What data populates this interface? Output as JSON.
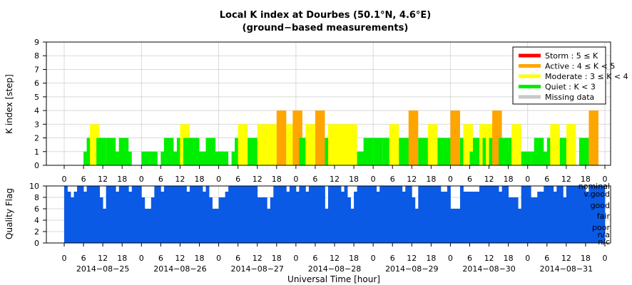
{
  "figure": {
    "title": "Local K index at Dourbes (50.1°N, 4.6°E)",
    "subtitle": "(ground−based measurements)",
    "xlabel": "Universal Time [hour]"
  },
  "chart_data": [
    {
      "type": "bar",
      "name": "k-index",
      "ylabel": "K index [step]",
      "ylim": [
        0,
        9
      ],
      "yticks": [
        0,
        1,
        2,
        3,
        4,
        5,
        6,
        7,
        8,
        9
      ],
      "x_unit": "hours since 2014-08-25 00:00 UT",
      "xlim": [
        0,
        168
      ],
      "bar_width_hours": 3,
      "hour_tick_labels": [
        "0",
        "6",
        "12",
        "18",
        "0",
        "6",
        "12",
        "18",
        "0",
        "6",
        "12",
        "18",
        "0",
        "6",
        "12",
        "18",
        "0",
        "6",
        "12",
        "18",
        "0",
        "6",
        "12",
        "18",
        "0",
        "6",
        "12",
        "18",
        "0"
      ],
      "grid": true,
      "legend": {
        "placement": "top-right",
        "entries": [
          {
            "label": "Storm : 5 ≤ K",
            "color": "#ff0000"
          },
          {
            "label": "Active : 4 ≤ K < 5",
            "color": "#ffa500"
          },
          {
            "label": "Moderate : 3 ≤ K < 4",
            "color": "#ffff00"
          },
          {
            "label": "Quiet : K < 3",
            "color": "#00ee00"
          },
          {
            "label": "Missing data",
            "color": "#c8c8c8"
          }
        ]
      },
      "values": [
        {
          "t": 6,
          "k": 1
        },
        {
          "t": 7,
          "k": 2
        },
        {
          "t": 8,
          "k": 3
        },
        {
          "t": 10,
          "k": 2
        },
        {
          "t": 13,
          "k": 2
        },
        {
          "t": 15,
          "k": 1
        },
        {
          "t": 17,
          "k": 2
        },
        {
          "t": 18,
          "k": 1
        },
        {
          "t": 24,
          "k": 1
        },
        {
          "t": 26,
          "k": 1
        },
        {
          "t": 30,
          "k": 1
        },
        {
          "t": 31,
          "k": 2
        },
        {
          "t": 33,
          "k": 1
        },
        {
          "t": 35,
          "k": 2
        },
        {
          "t": 36,
          "k": 3
        },
        {
          "t": 37,
          "k": 2
        },
        {
          "t": 39,
          "k": 2
        },
        {
          "t": 42,
          "k": 1
        },
        {
          "t": 44,
          "k": 2
        },
        {
          "t": 46,
          "k": 1
        },
        {
          "t": 48,
          "k": 1
        },
        {
          "t": 50,
          "k": 0
        },
        {
          "t": 52,
          "k": 1
        },
        {
          "t": 53,
          "k": 2
        },
        {
          "t": 54,
          "k": 3
        },
        {
          "t": 57,
          "k": 2
        },
        {
          "t": 58,
          "k": 2
        },
        {
          "t": 60,
          "k": 3
        },
        {
          "t": 63,
          "k": 3
        },
        {
          "t": 66,
          "k": 4
        },
        {
          "t": 69,
          "k": 3
        },
        {
          "t": 71,
          "k": 4
        },
        {
          "t": 73,
          "k": 2
        },
        {
          "t": 75,
          "k": 3
        },
        {
          "t": 78,
          "k": 4
        },
        {
          "t": 81,
          "k": 2
        },
        {
          "t": 82,
          "k": 3
        },
        {
          "t": 85,
          "k": 3
        },
        {
          "t": 88,
          "k": 3
        },
        {
          "t": 91,
          "k": 1
        },
        {
          "t": 93,
          "k": 2
        },
        {
          "t": 96,
          "k": 2
        },
        {
          "t": 99,
          "k": 2
        },
        {
          "t": 101,
          "k": 3
        },
        {
          "t": 104,
          "k": 2
        },
        {
          "t": 106,
          "k": 2
        },
        {
          "t": 107,
          "k": 4
        },
        {
          "t": 110,
          "k": 2
        },
        {
          "t": 112,
          "k": 1
        },
        {
          "t": 113,
          "k": 3
        },
        {
          "t": 116,
          "k": 2
        },
        {
          "t": 118,
          "k": 1
        },
        {
          "t": 119,
          "k": 2
        },
        {
          "t": 120,
          "k": 4
        },
        {
          "t": 123,
          "k": 2
        },
        {
          "t": 124,
          "k": 3
        },
        {
          "t": 126,
          "k": 1
        },
        {
          "t": 127,
          "k": 2
        },
        {
          "t": 129,
          "k": 3
        },
        {
          "t": 130,
          "k": 2
        },
        {
          "t": 131,
          "k": 3
        },
        {
          "t": 132,
          "k": 2
        },
        {
          "t": 133,
          "k": 4
        },
        {
          "t": 135,
          "k": 2
        },
        {
          "t": 137,
          "k": 1
        },
        {
          "t": 138,
          "k": 2
        },
        {
          "t": 139,
          "k": 3
        },
        {
          "t": 142,
          "k": 1
        },
        {
          "t": 145,
          "k": 1
        },
        {
          "t": 146,
          "k": 2
        },
        {
          "t": 148,
          "k": 1
        },
        {
          "t": 150,
          "k": 2
        },
        {
          "t": 151,
          "k": 3
        },
        {
          "t": 154,
          "k": 2
        },
        {
          "t": 156,
          "k": 3
        },
        {
          "t": 160,
          "k": 2
        },
        {
          "t": 163,
          "k": 4
        }
      ]
    },
    {
      "type": "bar",
      "name": "quality-flag",
      "ylabel": "Quality Flag",
      "ylim": [
        0,
        10
      ],
      "yticks": [
        0,
        2,
        4,
        6,
        8,
        10
      ],
      "x_unit": "hours since 2014-08-25 00:00 UT",
      "xlim": [
        0,
        168
      ],
      "bar_width_hours": 1,
      "color": "#0a5ae6",
      "grid": true,
      "hour_tick_labels": [
        "0",
        "6",
        "12",
        "18",
        "0",
        "6",
        "12",
        "18",
        "0",
        "6",
        "12",
        "18",
        "0",
        "6",
        "12",
        "18",
        "0",
        "6",
        "12",
        "18",
        "0",
        "6",
        "12",
        "18",
        "0",
        "6",
        "12",
        "18",
        "0"
      ],
      "date_labels": [
        "2014−08−25",
        "2014−08−26",
        "2014−08−27",
        "2014−08−28",
        "2014−08−29",
        "2014−08−30",
        "2014−08−31"
      ],
      "quality_labels": [
        "nominal",
        "v.good",
        "good",
        "fair",
        "poor",
        "n/a",
        "n/c"
      ],
      "default_value": 10,
      "values": [
        {
          "t": 1,
          "q": 9
        },
        {
          "t": 2,
          "q": 8
        },
        {
          "t": 3,
          "q": 9
        },
        {
          "t": 6,
          "q": 9
        },
        {
          "t": 11,
          "q": 8
        },
        {
          "t": 12,
          "q": 6
        },
        {
          "t": 16,
          "q": 9
        },
        {
          "t": 20,
          "q": 9
        },
        {
          "t": 24,
          "q": 8
        },
        {
          "t": 25,
          "q": 6
        },
        {
          "t": 26,
          "q": 6
        },
        {
          "t": 27,
          "q": 8
        },
        {
          "t": 30,
          "q": 9
        },
        {
          "t": 38,
          "q": 9
        },
        {
          "t": 43,
          "q": 9
        },
        {
          "t": 45,
          "q": 8
        },
        {
          "t": 46,
          "q": 6
        },
        {
          "t": 47,
          "q": 6
        },
        {
          "t": 48,
          "q": 8
        },
        {
          "t": 49,
          "q": 8
        },
        {
          "t": 50,
          "q": 9
        },
        {
          "t": 60,
          "q": 8
        },
        {
          "t": 61,
          "q": 8
        },
        {
          "t": 62,
          "q": 8
        },
        {
          "t": 63,
          "q": 6
        },
        {
          "t": 64,
          "q": 8
        },
        {
          "t": 69,
          "q": 9
        },
        {
          "t": 72,
          "q": 9
        },
        {
          "t": 75,
          "q": 9
        },
        {
          "t": 81,
          "q": 6
        },
        {
          "t": 86,
          "q": 9
        },
        {
          "t": 88,
          "q": 8
        },
        {
          "t": 89,
          "q": 6
        },
        {
          "t": 90,
          "q": 9
        },
        {
          "t": 97,
          "q": 9
        },
        {
          "t": 105,
          "q": 9
        },
        {
          "t": 108,
          "q": 8
        },
        {
          "t": 109,
          "q": 6
        },
        {
          "t": 117,
          "q": 9
        },
        {
          "t": 118,
          "q": 9
        },
        {
          "t": 120,
          "q": 6
        },
        {
          "t": 121,
          "q": 6
        },
        {
          "t": 122,
          "q": 6
        },
        {
          "t": 124,
          "q": 9
        },
        {
          "t": 125,
          "q": 9
        },
        {
          "t": 126,
          "q": 9
        },
        {
          "t": 127,
          "q": 9
        },
        {
          "t": 128,
          "q": 9
        },
        {
          "t": 135,
          "q": 9
        },
        {
          "t": 138,
          "q": 8
        },
        {
          "t": 139,
          "q": 8
        },
        {
          "t": 140,
          "q": 8
        },
        {
          "t": 141,
          "q": 6
        },
        {
          "t": 145,
          "q": 8
        },
        {
          "t": 146,
          "q": 8
        },
        {
          "t": 147,
          "q": 9
        },
        {
          "t": 148,
          "q": 9
        },
        {
          "t": 152,
          "q": 9
        },
        {
          "t": 155,
          "q": 8
        },
        {
          "t": 162,
          "q": 9
        }
      ]
    }
  ]
}
